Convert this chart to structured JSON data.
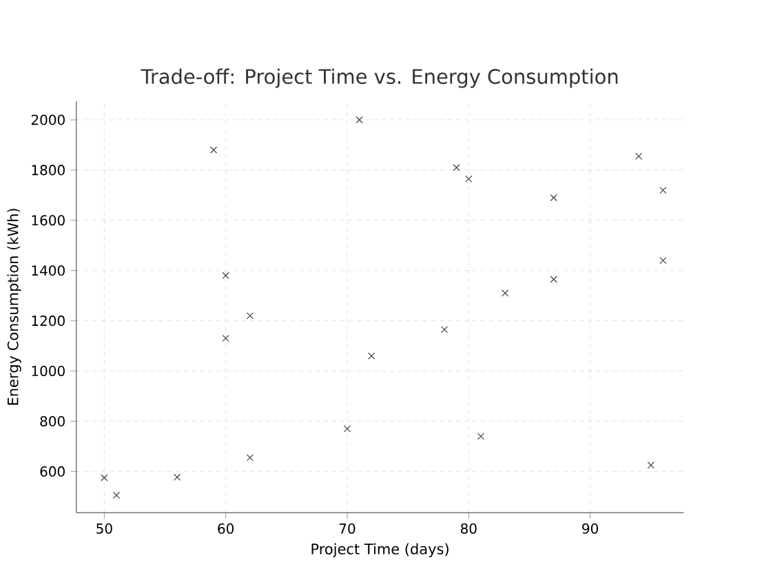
{
  "chart_data": {
    "type": "scatter",
    "title": "Trade-off: Project Time vs. Energy Consumption",
    "xlabel": "Project Time (days)",
    "ylabel": "Energy Consumption (kWh)",
    "x": [
      50,
      51,
      56,
      59,
      60,
      60,
      62,
      62,
      70,
      71,
      72,
      78,
      79,
      80,
      81,
      83,
      87,
      87,
      94,
      95,
      96,
      96
    ],
    "values": [
      575,
      505,
      577,
      1880,
      1380,
      1130,
      1220,
      655,
      770,
      2000,
      1060,
      1165,
      1810,
      1765,
      740,
      1310,
      1690,
      1365,
      1855,
      625,
      1720,
      1440
    ],
    "color": "#404040",
    "marker": "cross",
    "grid": true,
    "xlim": [
      47.7,
      97.7
    ],
    "ylim": [
      436,
      2075
    ],
    "xticks": [
      50,
      60,
      70,
      80,
      90
    ],
    "yticks": [
      600,
      800,
      1000,
      1200,
      1400,
      1600,
      1800,
      2000
    ]
  }
}
